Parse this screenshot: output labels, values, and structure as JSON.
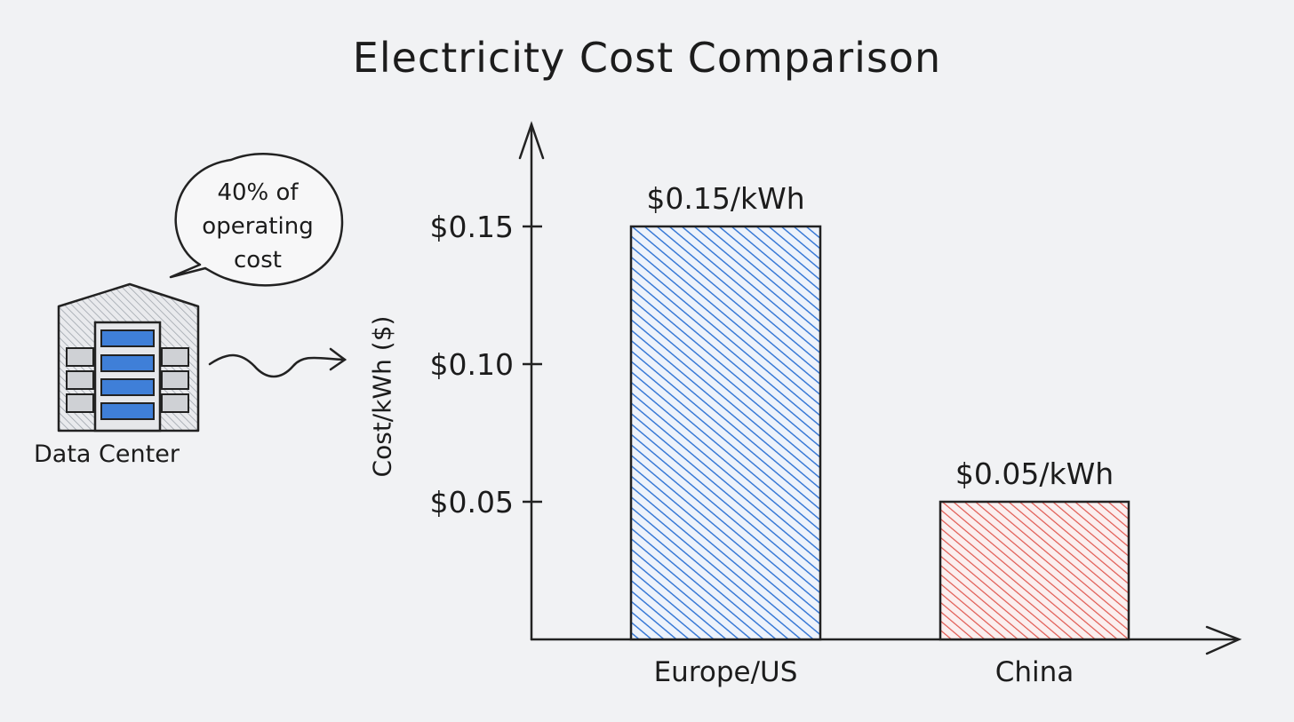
{
  "chart_data": {
    "type": "bar",
    "title": "Electricity Cost Comparison",
    "ylabel": "Cost/kWh ($)",
    "xlabel": "",
    "categories": [
      "Europe/US",
      "China"
    ],
    "values": [
      0.15,
      0.05
    ],
    "data_labels": [
      "$0.15/kWh",
      "$0.05/kWh"
    ],
    "colors": [
      "#3a7ad6",
      "#e0574f"
    ],
    "yticks": [
      0.05,
      0.1,
      0.15
    ],
    "ytick_labels": [
      "$0.05",
      "$0.10",
      "$0.15"
    ],
    "ylim": [
      0,
      0.22
    ],
    "grid": false,
    "legend": "none"
  },
  "annotation": {
    "bubble_text": "40% of\noperating\ncost",
    "icon_label": "Data Center",
    "icon_name": "data-center-icon"
  }
}
